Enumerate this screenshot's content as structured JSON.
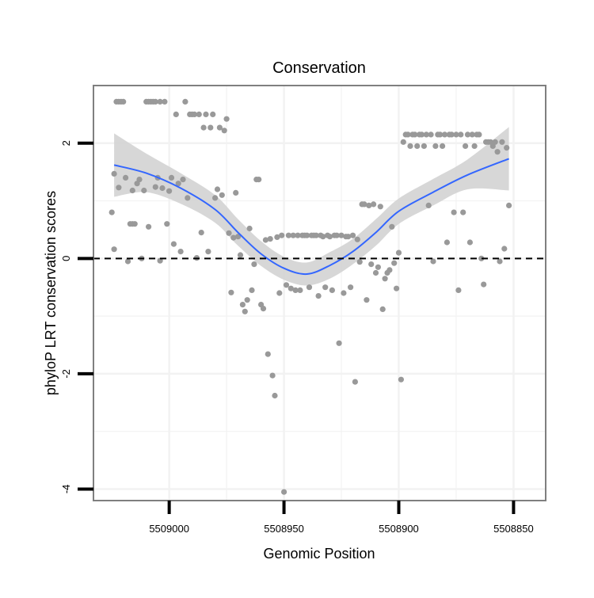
{
  "chart_data": {
    "type": "scatter",
    "title": "Conservation",
    "xlabel": "Genomic Position",
    "ylabel": "phyloP LRT conservation scores",
    "x_reversed": true,
    "xlim": [
      5509033,
      5508836
    ],
    "ylim": [
      -4.2,
      3.0
    ],
    "x_ticks": [
      5509000,
      5508950,
      5508900,
      5508850
    ],
    "x_tick_labels": [
      "5509000",
      "5508950",
      "5508900",
      "5508850"
    ],
    "y_ticks": [
      2,
      0,
      -2,
      -4
    ],
    "y_tick_labels": [
      "2",
      "0",
      "-2",
      "-4"
    ],
    "grid": true,
    "reference_line": {
      "y": 0,
      "style": "dashed"
    },
    "colors": {
      "points": "#999999",
      "smooth": "#3366ff",
      "ribbon": "#d3d3d3",
      "panel_border": "#7f7f7f",
      "grid": "#f2f2f2"
    },
    "points": [
      {
        "x": 5509025,
        "y": 0.8
      },
      {
        "x": 5509024,
        "y": 1.47
      },
      {
        "x": 5509024,
        "y": 0.16
      },
      {
        "x": 5509023,
        "y": 2.72
      },
      {
        "x": 5509022,
        "y": 2.72
      },
      {
        "x": 5509021,
        "y": 2.72
      },
      {
        "x": 5509020,
        "y": 2.72
      },
      {
        "x": 5509022,
        "y": 1.23
      },
      {
        "x": 5509019,
        "y": 1.4
      },
      {
        "x": 5509018,
        "y": -0.05
      },
      {
        "x": 5509017,
        "y": 0.6
      },
      {
        "x": 5509016,
        "y": 1.18
      },
      {
        "x": 5509016,
        "y": 0.6
      },
      {
        "x": 5509015,
        "y": 0.6
      },
      {
        "x": 5509014,
        "y": 1.3
      },
      {
        "x": 5509013,
        "y": 1.37
      },
      {
        "x": 5509012,
        "y": 0.0
      },
      {
        "x": 5509011,
        "y": 1.18
      },
      {
        "x": 5509010,
        "y": 2.72
      },
      {
        "x": 5509009,
        "y": 2.72
      },
      {
        "x": 5509008,
        "y": 2.72
      },
      {
        "x": 5509007,
        "y": 2.72
      },
      {
        "x": 5509006,
        "y": 2.72
      },
      {
        "x": 5509004,
        "y": 2.72
      },
      {
        "x": 5509002,
        "y": 2.72
      },
      {
        "x": 5509009,
        "y": 0.55
      },
      {
        "x": 5509006,
        "y": 1.24
      },
      {
        "x": 5509005,
        "y": 1.4
      },
      {
        "x": 5509004,
        "y": -0.04
      },
      {
        "x": 5509003,
        "y": 1.22
      },
      {
        "x": 5509001,
        "y": 0.6
      },
      {
        "x": 5509000,
        "y": 1.17
      },
      {
        "x": 5508999,
        "y": 1.4
      },
      {
        "x": 5508998,
        "y": 0.25
      },
      {
        "x": 5508997,
        "y": 2.5
      },
      {
        "x": 5508996,
        "y": 1.3
      },
      {
        "x": 5508995,
        "y": 0.12
      },
      {
        "x": 5508994,
        "y": 1.37
      },
      {
        "x": 5508993,
        "y": 2.72
      },
      {
        "x": 5508992,
        "y": 1.05
      },
      {
        "x": 5508991,
        "y": 2.5
      },
      {
        "x": 5508990,
        "y": 2.5
      },
      {
        "x": 5508989,
        "y": 2.5
      },
      {
        "x": 5508988,
        "y": 0.01
      },
      {
        "x": 5508987,
        "y": 2.5
      },
      {
        "x": 5508986,
        "y": 0.45
      },
      {
        "x": 5508985,
        "y": 2.27
      },
      {
        "x": 5508984,
        "y": 2.5
      },
      {
        "x": 5508983,
        "y": 0.12
      },
      {
        "x": 5508982,
        "y": 2.27
      },
      {
        "x": 5508981,
        "y": 2.5
      },
      {
        "x": 5508980,
        "y": 1.05
      },
      {
        "x": 5508979,
        "y": 1.2
      },
      {
        "x": 5508978,
        "y": 2.27
      },
      {
        "x": 5508977,
        "y": 1.1
      },
      {
        "x": 5508976,
        "y": 2.22
      },
      {
        "x": 5508975,
        "y": 2.42
      },
      {
        "x": 5508974,
        "y": 0.44
      },
      {
        "x": 5508973,
        "y": -0.59
      },
      {
        "x": 5508972,
        "y": 0.36
      },
      {
        "x": 5508971,
        "y": 1.14
      },
      {
        "x": 5508970,
        "y": 0.38
      },
      {
        "x": 5508969,
        "y": 0.06
      },
      {
        "x": 5508968,
        "y": -0.8
      },
      {
        "x": 5508967,
        "y": -0.92
      },
      {
        "x": 5508966,
        "y": -0.72
      },
      {
        "x": 5508965,
        "y": 0.52
      },
      {
        "x": 5508964,
        "y": -0.55
      },
      {
        "x": 5508963,
        "y": -0.1
      },
      {
        "x": 5508962,
        "y": 1.37
      },
      {
        "x": 5508961,
        "y": 1.37
      },
      {
        "x": 5508960,
        "y": -0.8
      },
      {
        "x": 5508959,
        "y": -0.87
      },
      {
        "x": 5508958,
        "y": 0.32
      },
      {
        "x": 5508957,
        "y": -1.66
      },
      {
        "x": 5508956,
        "y": 0.34
      },
      {
        "x": 5508955,
        "y": -2.03
      },
      {
        "x": 5508954,
        "y": -2.38
      },
      {
        "x": 5508953,
        "y": 0.37
      },
      {
        "x": 5508952,
        "y": -0.6
      },
      {
        "x": 5508951,
        "y": 0.4
      },
      {
        "x": 5508950,
        "y": -4.05
      },
      {
        "x": 5508949,
        "y": -0.46
      },
      {
        "x": 5508948,
        "y": 0.4
      },
      {
        "x": 5508947,
        "y": -0.52
      },
      {
        "x": 5508946,
        "y": 0.4
      },
      {
        "x": 5508945,
        "y": -0.55
      },
      {
        "x": 5508944,
        "y": 0.4
      },
      {
        "x": 5508943,
        "y": -0.55
      },
      {
        "x": 5508942,
        "y": 0.4
      },
      {
        "x": 5508941,
        "y": 0.4
      },
      {
        "x": 5508940,
        "y": 0.4
      },
      {
        "x": 5508939,
        "y": -0.5
      },
      {
        "x": 5508938,
        "y": 0.4
      },
      {
        "x": 5508937,
        "y": 0.4
      },
      {
        "x": 5508936,
        "y": 0.4
      },
      {
        "x": 5508935,
        "y": -0.65
      },
      {
        "x": 5508934,
        "y": 0.4
      },
      {
        "x": 5508933,
        "y": 0.38
      },
      {
        "x": 5508932,
        "y": -0.5
      },
      {
        "x": 5508931,
        "y": 0.4
      },
      {
        "x": 5508930,
        "y": 0.38
      },
      {
        "x": 5508929,
        "y": -0.55
      },
      {
        "x": 5508928,
        "y": 0.4
      },
      {
        "x": 5508927,
        "y": 0.4
      },
      {
        "x": 5508926,
        "y": -1.47
      },
      {
        "x": 5508925,
        "y": 0.4
      },
      {
        "x": 5508924,
        "y": -0.6
      },
      {
        "x": 5508923,
        "y": 0.38
      },
      {
        "x": 5508922,
        "y": 0.38
      },
      {
        "x": 5508921,
        "y": -0.5
      },
      {
        "x": 5508920,
        "y": 0.4
      },
      {
        "x": 5508919,
        "y": -2.14
      },
      {
        "x": 5508918,
        "y": 0.33
      },
      {
        "x": 5508917,
        "y": -0.06
      },
      {
        "x": 5508916,
        "y": 0.94
      },
      {
        "x": 5508915,
        "y": 0.94
      },
      {
        "x": 5508914,
        "y": -0.72
      },
      {
        "x": 5508913,
        "y": 0.92
      },
      {
        "x": 5508912,
        "y": -0.1
      },
      {
        "x": 5508911,
        "y": 0.94
      },
      {
        "x": 5508910,
        "y": -0.25
      },
      {
        "x": 5508909,
        "y": -0.15
      },
      {
        "x": 5508908,
        "y": 0.9
      },
      {
        "x": 5508907,
        "y": -0.88
      },
      {
        "x": 5508906,
        "y": -0.35
      },
      {
        "x": 5508905,
        "y": -0.25
      },
      {
        "x": 5508904,
        "y": -0.2
      },
      {
        "x": 5508903,
        "y": 0.55
      },
      {
        "x": 5508902,
        "y": -0.08
      },
      {
        "x": 5508901,
        "y": -0.52
      },
      {
        "x": 5508900,
        "y": 0.1
      },
      {
        "x": 5508899,
        "y": -2.1
      },
      {
        "x": 5508898,
        "y": 2.02
      },
      {
        "x": 5508897,
        "y": 2.15
      },
      {
        "x": 5508896,
        "y": 2.15
      },
      {
        "x": 5508895,
        "y": 1.95
      },
      {
        "x": 5508894,
        "y": 2.15
      },
      {
        "x": 5508893,
        "y": 2.15
      },
      {
        "x": 5508892,
        "y": 1.95
      },
      {
        "x": 5508891,
        "y": 2.15
      },
      {
        "x": 5508890,
        "y": 2.15
      },
      {
        "x": 5508889,
        "y": 1.95
      },
      {
        "x": 5508888,
        "y": 2.15
      },
      {
        "x": 5508887,
        "y": 0.92
      },
      {
        "x": 5508886,
        "y": 2.15
      },
      {
        "x": 5508885,
        "y": -0.05
      },
      {
        "x": 5508884,
        "y": 1.95
      },
      {
        "x": 5508883,
        "y": 2.15
      },
      {
        "x": 5508882,
        "y": 2.15
      },
      {
        "x": 5508881,
        "y": 1.95
      },
      {
        "x": 5508880,
        "y": 2.15
      },
      {
        "x": 5508879,
        "y": 0.28
      },
      {
        "x": 5508878,
        "y": 2.15
      },
      {
        "x": 5508877,
        "y": 2.15
      },
      {
        "x": 5508876,
        "y": 0.8
      },
      {
        "x": 5508875,
        "y": 2.15
      },
      {
        "x": 5508874,
        "y": -0.55
      },
      {
        "x": 5508873,
        "y": 2.15
      },
      {
        "x": 5508872,
        "y": 0.8
      },
      {
        "x": 5508871,
        "y": 1.95
      },
      {
        "x": 5508870,
        "y": 2.15
      },
      {
        "x": 5508869,
        "y": 0.28
      },
      {
        "x": 5508868,
        "y": 2.15
      },
      {
        "x": 5508867,
        "y": 1.95
      },
      {
        "x": 5508866,
        "y": 2.15
      },
      {
        "x": 5508865,
        "y": 2.15
      },
      {
        "x": 5508864,
        "y": 0.0
      },
      {
        "x": 5508863,
        "y": -0.45
      },
      {
        "x": 5508862,
        "y": 2.02
      },
      {
        "x": 5508861,
        "y": 2.02
      },
      {
        "x": 5508860,
        "y": 2.02
      },
      {
        "x": 5508859,
        "y": 1.95
      },
      {
        "x": 5508858,
        "y": 2.02
      },
      {
        "x": 5508857,
        "y": 1.85
      },
      {
        "x": 5508856,
        "y": -0.05
      },
      {
        "x": 5508855,
        "y": 2.02
      },
      {
        "x": 5508854,
        "y": 0.17
      },
      {
        "x": 5508853,
        "y": 1.92
      },
      {
        "x": 5508852,
        "y": 0.92
      }
    ],
    "smooth": [
      {
        "x": 5509024,
        "y": 1.62,
        "ymin": 1.07,
        "ymax": 2.17
      },
      {
        "x": 5509010,
        "y": 1.48,
        "ymin": 1.15,
        "ymax": 1.82
      },
      {
        "x": 5508995,
        "y": 1.22,
        "ymin": 0.95,
        "ymax": 1.48
      },
      {
        "x": 5508980,
        "y": 0.85,
        "ymin": 0.62,
        "ymax": 1.1
      },
      {
        "x": 5508970,
        "y": 0.45,
        "ymin": 0.22,
        "ymax": 0.68
      },
      {
        "x": 5508960,
        "y": 0.08,
        "ymin": -0.13,
        "ymax": 0.3
      },
      {
        "x": 5508950,
        "y": -0.17,
        "ymin": -0.37,
        "ymax": 0.03
      },
      {
        "x": 5508940,
        "y": -0.27,
        "ymin": -0.47,
        "ymax": -0.07
      },
      {
        "x": 5508930,
        "y": -0.12,
        "ymin": -0.35,
        "ymax": 0.11
      },
      {
        "x": 5508920,
        "y": 0.12,
        "ymin": -0.1,
        "ymax": 0.34
      },
      {
        "x": 5508910,
        "y": 0.45,
        "ymin": 0.22,
        "ymax": 0.68
      },
      {
        "x": 5508900,
        "y": 0.82,
        "ymin": 0.6,
        "ymax": 1.04
      },
      {
        "x": 5508885,
        "y": 1.15,
        "ymin": 0.92,
        "ymax": 1.38
      },
      {
        "x": 5508870,
        "y": 1.45,
        "ymin": 1.2,
        "ymax": 1.72
      },
      {
        "x": 5508852,
        "y": 1.73,
        "ymin": 1.18,
        "ymax": 2.28
      }
    ]
  }
}
